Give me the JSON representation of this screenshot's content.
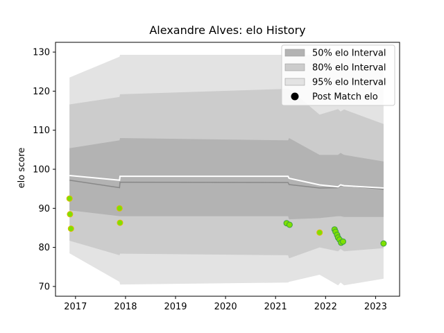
{
  "chart_data": {
    "type": "line",
    "title": "Alexandre Alves: elo History",
    "xlabel": "",
    "ylabel": "elo score",
    "xlim": [
      2016.6,
      2023.48
    ],
    "ylim": [
      67.5,
      132.5
    ],
    "xticks": [
      2017,
      2018,
      2019,
      2020,
      2021,
      2022,
      2023
    ],
    "yticks": [
      70,
      80,
      90,
      100,
      110,
      120,
      130
    ],
    "grid": false,
    "legend_position": "top-right",
    "colors": {
      "band50": "#b3b3b3",
      "band80": "#cccccc",
      "band95": "#e3e3e3",
      "mean": "#ffffff",
      "median": "#888888",
      "point_fill": "#7fe000",
      "point_edge": "#3aa040",
      "point_edge_early": "#e0b800"
    },
    "legend": [
      {
        "label": "50% elo Interval",
        "kind": "band50"
      },
      {
        "label": "80% elo Interval",
        "kind": "band80"
      },
      {
        "label": "95% elo Interval",
        "kind": "band95"
      },
      {
        "label": "Post Match elo",
        "kind": "point"
      }
    ],
    "bands": {
      "x": [
        2016.88,
        2017.88,
        2017.89,
        2021.25,
        2021.27,
        2021.88,
        2022.25,
        2022.3,
        2022.37,
        2023.16
      ],
      "b95_upper": [
        123.5,
        128.8,
        129.3,
        129.3,
        129.3,
        129.3,
        129.3,
        129.3,
        129.3,
        129.3
      ],
      "b95_lower": [
        78.5,
        71.2,
        70.5,
        71.0,
        71.2,
        73.0,
        70.3,
        71.0,
        70.3,
        72.0
      ],
      "b80_upper": [
        116.6,
        118.5,
        119.2,
        120.6,
        120.6,
        114.0,
        115.4,
        114.8,
        115.3,
        111.6
      ],
      "b80_lower": [
        81.7,
        78.0,
        78.4,
        78.0,
        77.2,
        80.0,
        79.0,
        79.6,
        79.0,
        79.8
      ],
      "b50_upper": [
        105.4,
        107.4,
        108.0,
        107.4,
        108.0,
        103.7,
        103.7,
        104.2,
        103.7,
        102.0
      ],
      "b50_lower": [
        89.5,
        88.0,
        88.0,
        88.0,
        87.2,
        87.5,
        88.0,
        88.0,
        87.8,
        87.8
      ],
      "mean": [
        98.4,
        97.2,
        98.2,
        98.2,
        97.7,
        96.0,
        95.5,
        96.0,
        95.8,
        95.2
      ],
      "median": [
        97.2,
        95.3,
        96.7,
        96.6,
        96.1,
        95.2,
        95.3,
        95.8,
        95.8,
        94.9
      ]
    },
    "series": [
      {
        "name": "Post Match elo",
        "points": [
          {
            "x": 2016.88,
            "y": 92.5,
            "edge": "early"
          },
          {
            "x": 2016.89,
            "y": 88.5,
            "edge": "early"
          },
          {
            "x": 2016.91,
            "y": 84.8,
            "edge": "early"
          },
          {
            "x": 2017.88,
            "y": 90.0,
            "edge": "early"
          },
          {
            "x": 2017.89,
            "y": 86.3,
            "edge": "early"
          },
          {
            "x": 2021.22,
            "y": 86.2,
            "edge": "late"
          },
          {
            "x": 2021.28,
            "y": 85.8,
            "edge": "late"
          },
          {
            "x": 2021.88,
            "y": 83.8,
            "edge": "early"
          },
          {
            "x": 2022.18,
            "y": 84.6,
            "edge": "late"
          },
          {
            "x": 2022.2,
            "y": 84.0,
            "edge": "late"
          },
          {
            "x": 2022.23,
            "y": 83.2,
            "edge": "late"
          },
          {
            "x": 2022.25,
            "y": 82.5,
            "edge": "late"
          },
          {
            "x": 2022.28,
            "y": 82.0,
            "edge": "late"
          },
          {
            "x": 2022.31,
            "y": 81.2,
            "edge": "late"
          },
          {
            "x": 2022.35,
            "y": 81.5,
            "edge": "late"
          },
          {
            "x": 2023.16,
            "y": 81.0,
            "edge": "late"
          }
        ]
      }
    ]
  }
}
